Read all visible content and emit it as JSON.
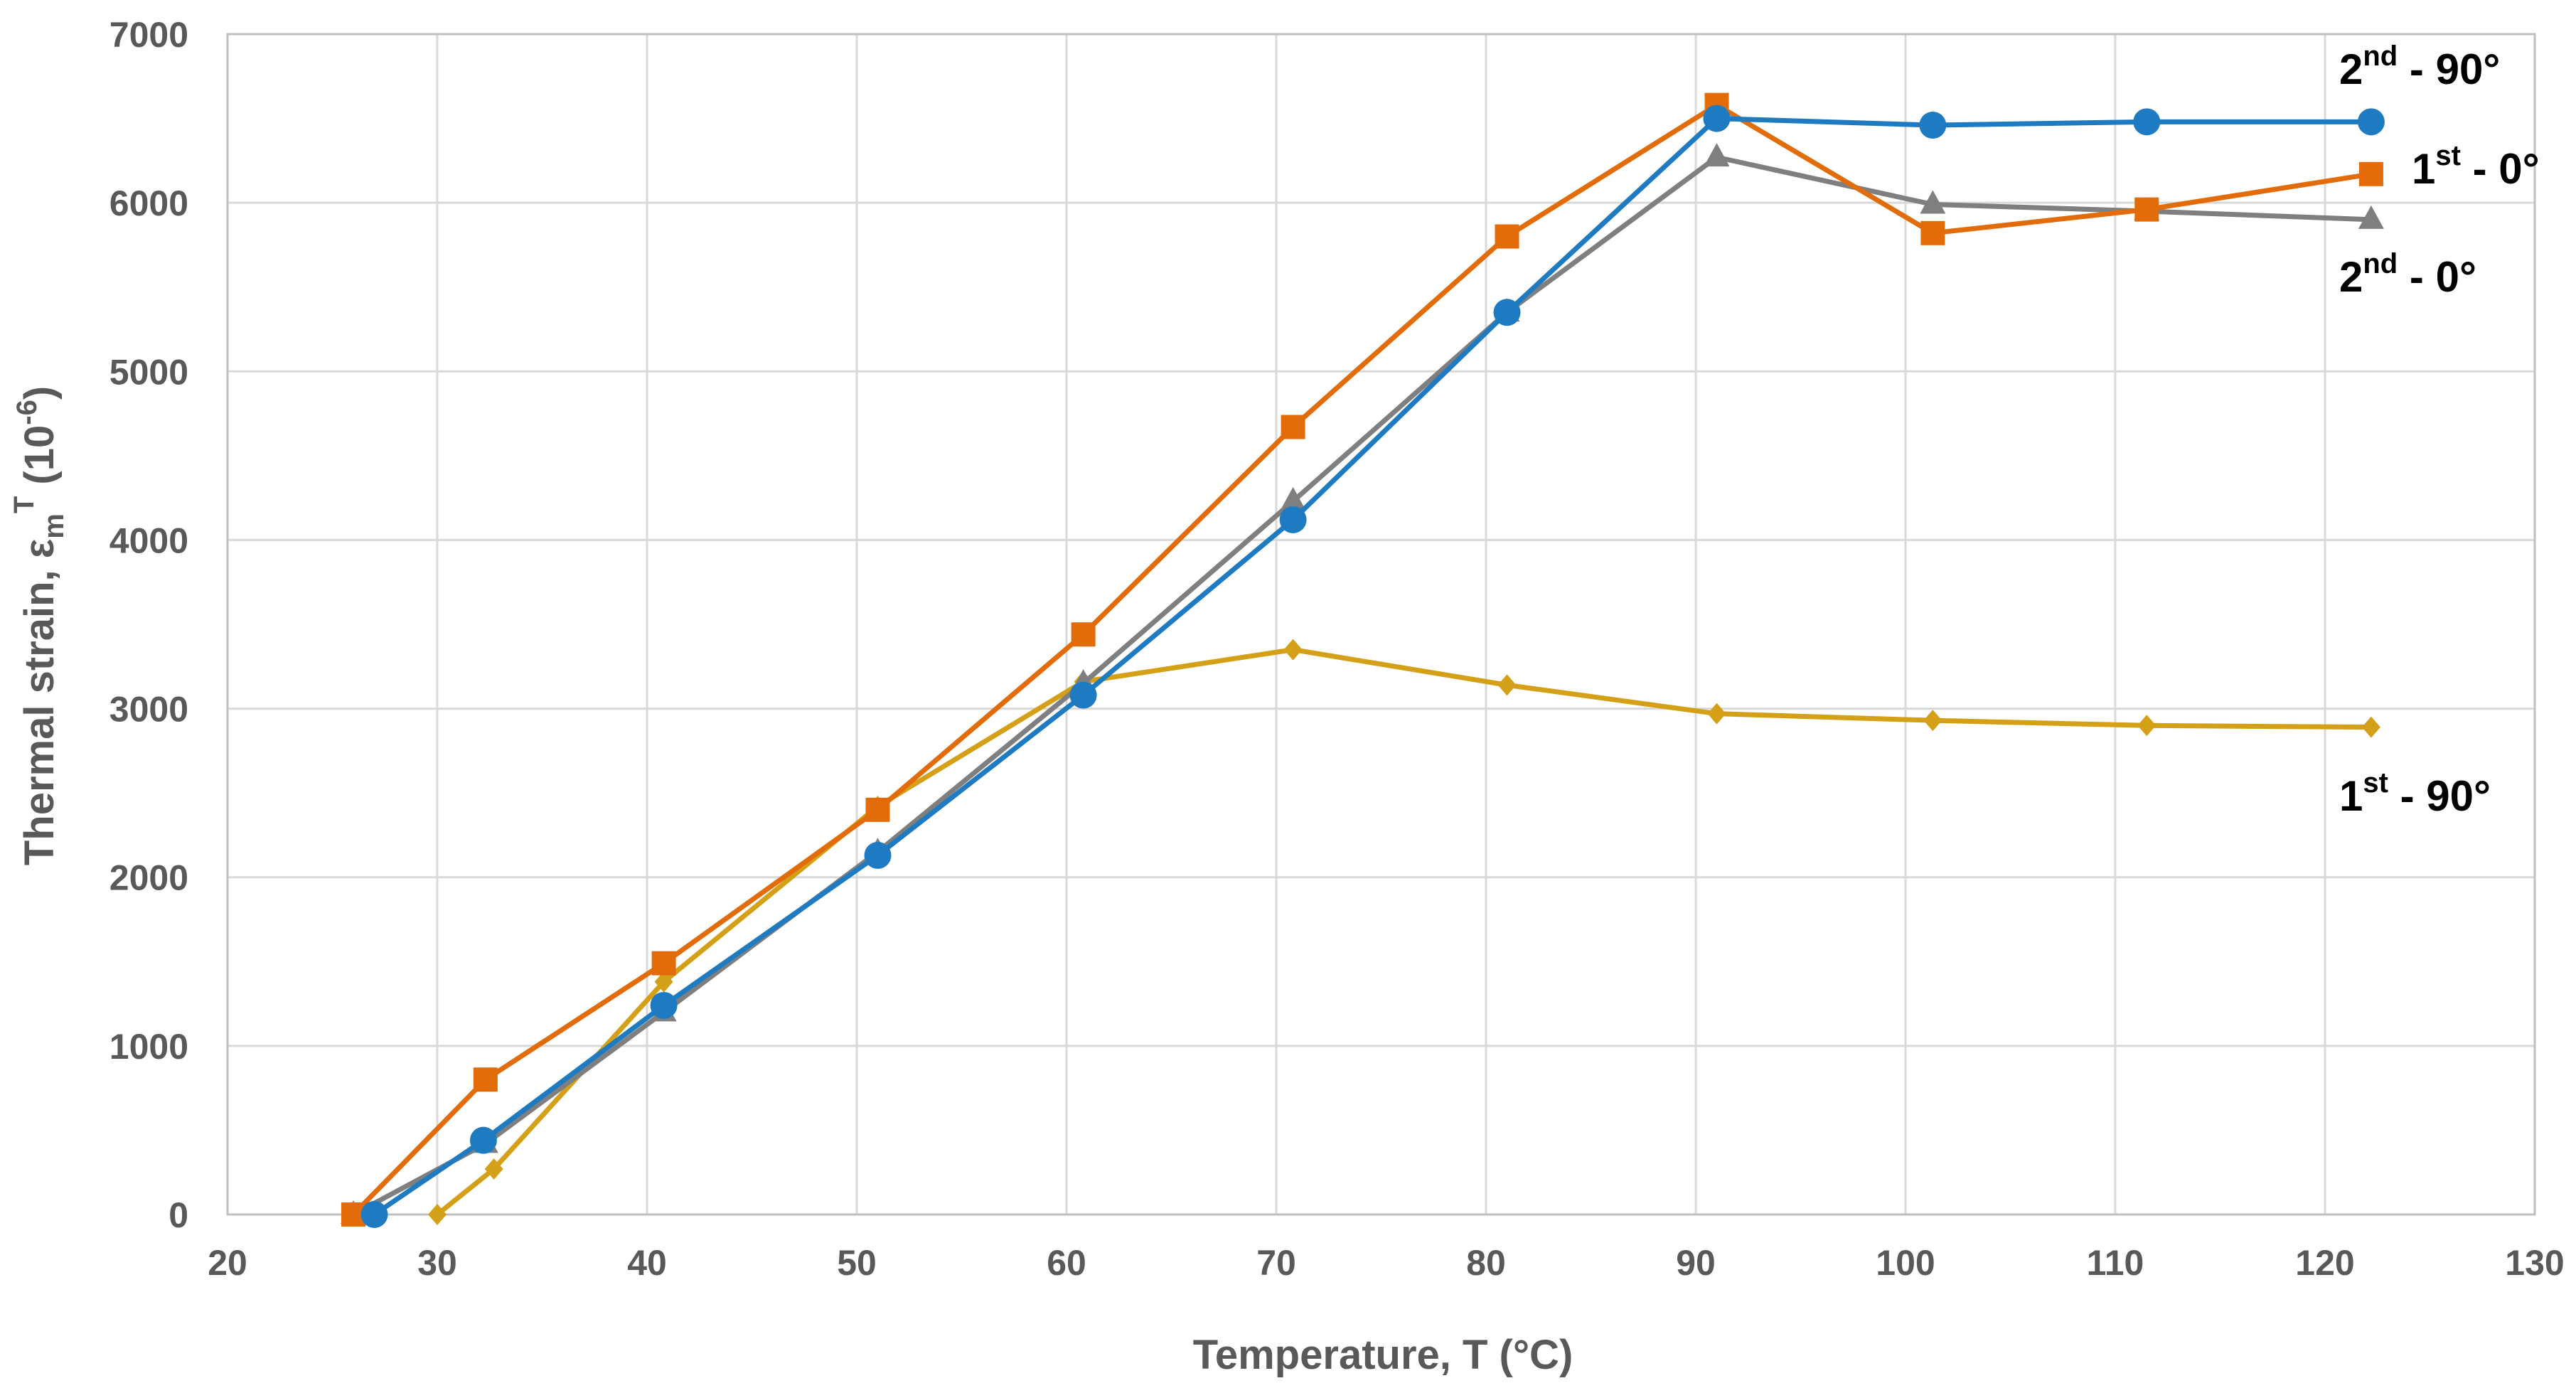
{
  "chart_data": {
    "type": "line",
    "title": "",
    "xlabel": "Temperature, T (°C)",
    "ylabel": {
      "prefix": "Thermal strain, ε",
      "subscript": "m",
      "superscript": "T",
      "unit_open": " (10",
      "unit_exp": "-6",
      "unit_close": ")"
    },
    "xlim": [
      20,
      130
    ],
    "ylim": [
      0,
      7000
    ],
    "x_ticks": [
      20,
      30,
      40,
      50,
      60,
      70,
      80,
      90,
      100,
      110,
      120,
      130
    ],
    "y_ticks": [
      0,
      1000,
      2000,
      3000,
      4000,
      5000,
      6000,
      7000
    ],
    "grid": true,
    "series": [
      {
        "name": "1st - 90°",
        "label_base": "1",
        "label_sup": "st",
        "label_rest": " - 90°",
        "color": "#D4A017",
        "marker": "diamond",
        "x": [
          30,
          32.7,
          40.8,
          51.0,
          60.8,
          70.8,
          81.0,
          91.0,
          101.3,
          111.5,
          122.2
        ],
        "y": [
          0,
          270,
          1380,
          2420,
          3160,
          3350,
          3140,
          2970,
          2930,
          2900,
          2890
        ]
      },
      {
        "name": "2nd - 0°",
        "label_base": "2",
        "label_sup": "nd",
        "label_rest": " - 0°",
        "color": "#7F7F7F",
        "marker": "triangle",
        "x": [
          26,
          32.3,
          40.8,
          51.0,
          60.8,
          70.8,
          81.0,
          91.0,
          101.3,
          111.5,
          122.2
        ],
        "y": [
          0,
          420,
          1200,
          2150,
          3150,
          4230,
          5350,
          6270,
          5990,
          5950,
          5900
        ]
      },
      {
        "name": "1st - 0°",
        "label_base": "1",
        "label_sup": "st",
        "label_rest": " - 0°",
        "color": "#E36C0A",
        "marker": "square",
        "x": [
          26,
          32.3,
          40.8,
          51.0,
          60.8,
          70.8,
          81.0,
          91.0,
          101.3,
          111.5,
          122.2
        ],
        "y": [
          0,
          800,
          1490,
          2400,
          3440,
          4670,
          5800,
          6580,
          5820,
          5960,
          6170
        ]
      },
      {
        "name": "2nd - 90°",
        "label_base": "2",
        "label_sup": "nd",
        "label_rest": " - 90°",
        "color": "#1F7BC1",
        "marker": "circle",
        "x": [
          27,
          32.2,
          40.8,
          51.0,
          60.8,
          70.8,
          81.0,
          91.0,
          101.3,
          111.5,
          122.2
        ],
        "y": [
          0,
          440,
          1240,
          2130,
          3080,
          4120,
          5350,
          6500,
          6460,
          6480,
          6480
        ]
      }
    ]
  }
}
